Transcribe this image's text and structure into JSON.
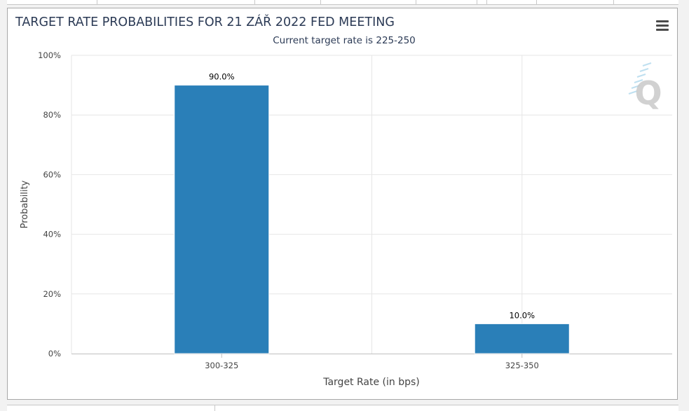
{
  "chart_data": {
    "type": "bar",
    "title": "TARGET RATE PROBABILITIES FOR 21 ZÁŘ 2022 FED MEETING",
    "subtitle": "Current target rate is 225-250",
    "xlabel": "Target Rate (in bps)",
    "ylabel": "Probability",
    "categories": [
      "300-325",
      "325-350"
    ],
    "values": [
      90.0,
      10.0
    ],
    "data_labels": [
      "90.0%",
      "10.0%"
    ],
    "ylim": [
      0,
      100
    ],
    "yticks": [
      0,
      20,
      40,
      60,
      80,
      100
    ],
    "ytick_labels": [
      "0%",
      "20%",
      "40%",
      "60%",
      "80%",
      "100%"
    ],
    "grid": true,
    "legend": "none",
    "bar_color": "#2a7fb8"
  },
  "colors": {
    "title": "#2b3a55",
    "text": "#333333",
    "axis_text": "#444444",
    "grid": "#e6e6e6",
    "axis_line": "#c0c0c0",
    "watermark": "#c9c9c9",
    "watermark_accent": "#bfe0f0"
  },
  "icons": {
    "menu": "hamburger-menu-icon",
    "watermark": "q-logo-icon"
  }
}
